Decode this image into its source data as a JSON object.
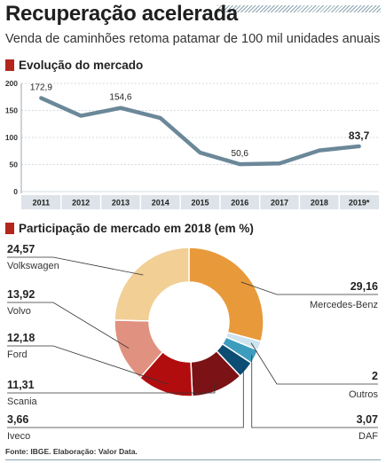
{
  "header": {
    "title": "Recuperação acelerada",
    "subtitle": "Venda de caminhões retoma patamar de 100 mil unidades anuais"
  },
  "sections": {
    "market": "Evolução do mercado",
    "share": "Participação de mercado em 2018 (em %)"
  },
  "footer": {
    "source": "Fonte: IBGE. Elaboração: Valor Data."
  },
  "colors": {
    "line": "#6b8899",
    "accent_square": "#b3261e",
    "axis_band": "#dde3e8"
  },
  "chart_data": [
    {
      "type": "line",
      "title": "Evolução do mercado",
      "categories": [
        "2011",
        "2012",
        "2013",
        "2014",
        "2015",
        "2016",
        "2017",
        "2018",
        "2019*"
      ],
      "values": [
        172.9,
        140,
        154.6,
        136,
        72,
        50.6,
        52,
        76,
        83.7
      ],
      "value_labels": {
        "0": "172,9",
        "2": "154,6",
        "5": "50,6",
        "8": "83,7"
      },
      "y_ticks": [
        "0",
        "50",
        "100",
        "150",
        "200"
      ],
      "ylim": [
        0,
        200
      ],
      "grid": true
    },
    {
      "type": "pie",
      "title": "Participação de mercado em 2018 (em %)",
      "slices": [
        {
          "name": "Mercedes-Benz",
          "value": 29.16,
          "label": "29,16",
          "color": "#e8993a"
        },
        {
          "name": "Outros",
          "value": 2,
          "label": "2",
          "color": "#cfe3ee"
        },
        {
          "name": "DAF",
          "value": 3.07,
          "label": "3,07",
          "color": "#3e9dbf"
        },
        {
          "name": "Iveco",
          "value": 3.66,
          "label": "3,66",
          "color": "#0d4c73"
        },
        {
          "name": "Scania",
          "value": 11.31,
          "label": "11,31",
          "color": "#7b1216"
        },
        {
          "name": "Ford",
          "value": 12.18,
          "label": "12,18",
          "color": "#b10d0f"
        },
        {
          "name": "Volvo",
          "value": 13.92,
          "label": "13,92",
          "color": "#e0917f"
        },
        {
          "name": "Volkswagen",
          "value": 24.57,
          "label": "24,57",
          "color": "#f1cf95"
        }
      ]
    }
  ]
}
